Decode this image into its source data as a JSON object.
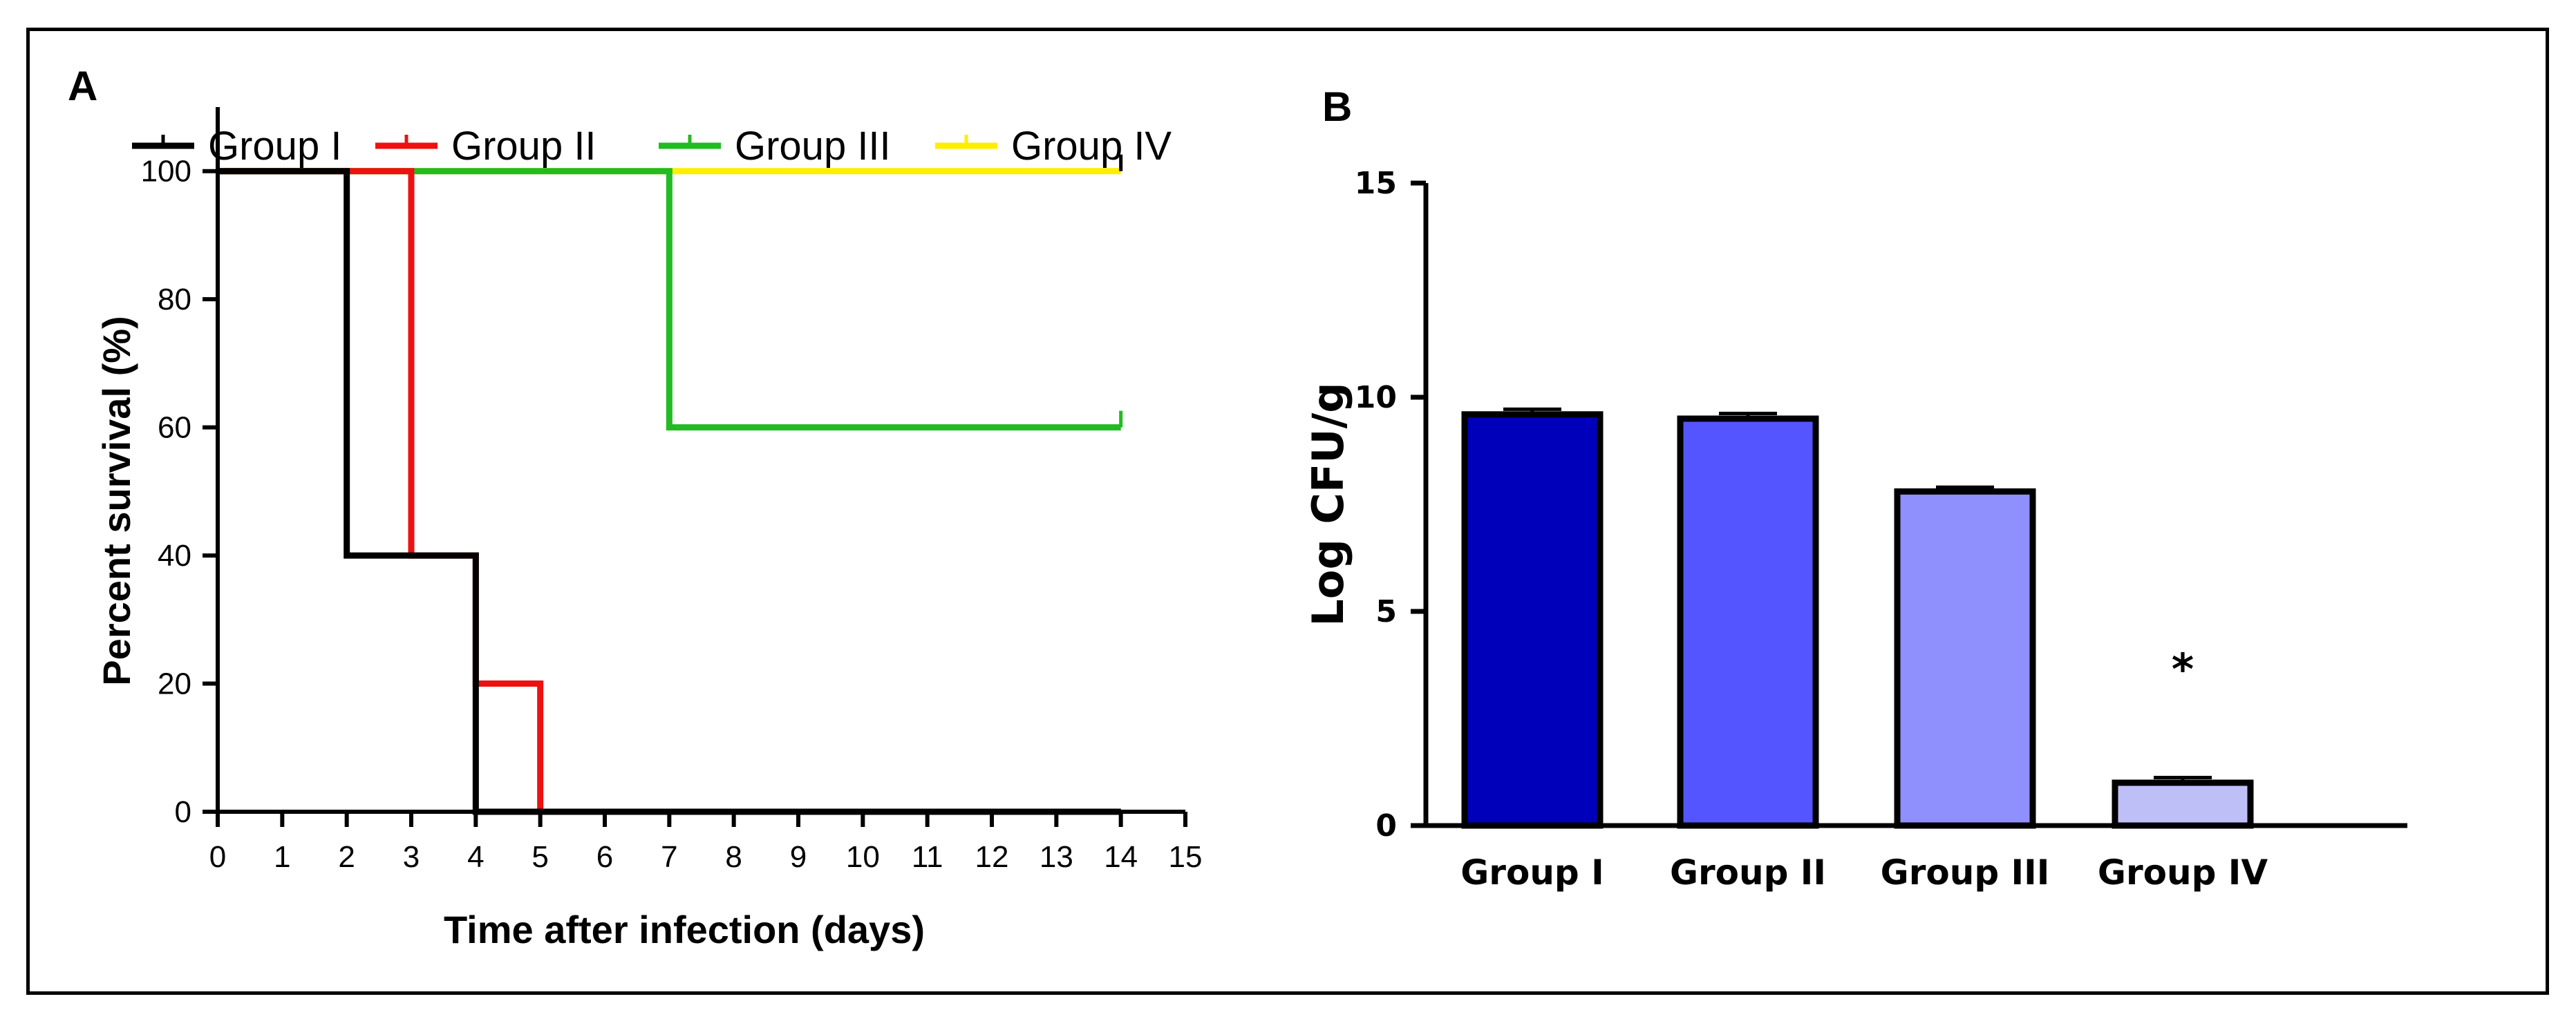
{
  "chart_data": [
    {
      "type": "line",
      "subtype": "kaplan-meier-survival",
      "panel_label": "A",
      "title": "",
      "xlabel": "Time after infection (days)",
      "ylabel": "Percent survival (%)",
      "xlim": [
        0,
        15
      ],
      "ylim": [
        0,
        110
      ],
      "xticks": [
        0,
        1,
        2,
        3,
        4,
        5,
        6,
        7,
        8,
        9,
        10,
        11,
        12,
        13,
        14,
        15
      ],
      "yticks": [
        0,
        20,
        40,
        60,
        80,
        100
      ],
      "legend_position": "top",
      "series": [
        {
          "name": "Group I",
          "color": "#000000",
          "steps": [
            [
              0,
              100
            ],
            [
              2,
              100
            ],
            [
              2,
              40
            ],
            [
              4,
              40
            ],
            [
              4,
              0
            ],
            [
              14,
              0
            ]
          ],
          "censored_at": []
        },
        {
          "name": "Group II",
          "color": "#ee1111",
          "steps": [
            [
              0,
              100
            ],
            [
              3,
              100
            ],
            [
              3,
              40
            ],
            [
              4,
              40
            ],
            [
              4,
              20
            ],
            [
              5,
              20
            ],
            [
              5,
              0
            ],
            [
              14,
              0
            ]
          ],
          "censored_at": []
        },
        {
          "name": "Group III",
          "color": "#22bb22",
          "steps": [
            [
              0,
              100
            ],
            [
              7,
              100
            ],
            [
              7,
              60
            ],
            [
              14,
              60
            ]
          ],
          "censored_at": [
            [
              14,
              60
            ]
          ]
        },
        {
          "name": "Group IV",
          "color": "#ffee00",
          "steps": [
            [
              0,
              100
            ],
            [
              14,
              100
            ]
          ],
          "censored_at": [
            [
              14,
              100
            ]
          ]
        }
      ]
    },
    {
      "type": "bar",
      "panel_label": "B",
      "title": "",
      "xlabel": "",
      "ylabel": "Log CFU/g",
      "ylim": [
        0,
        15
      ],
      "yticks": [
        0,
        5,
        10,
        15
      ],
      "categories": [
        "Group I",
        "Group II",
        "Group III",
        "Group IV"
      ],
      "values": [
        9.6,
        9.5,
        7.8,
        1.0
      ],
      "errors": [
        0.12,
        0.12,
        0.1,
        0.12
      ],
      "colors": [
        "#0000bb",
        "#5555ff",
        "#8f8ffd",
        "#bfbff8"
      ],
      "annotations": [
        {
          "category": "Group IV",
          "text": "*"
        }
      ]
    }
  ]
}
